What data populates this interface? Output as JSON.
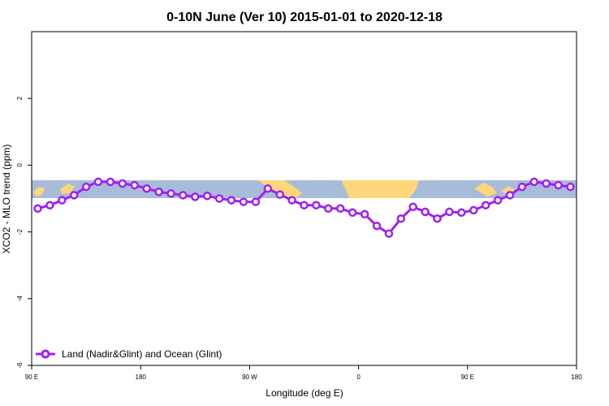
{
  "chart_data": {
    "type": "line",
    "title": "0-10N June (Ver 10)   2015-01-01 to 2020-12-18",
    "xlabel": "Longitude (deg E)",
    "ylabel": "XCO2 - MLO trend (ppm)",
    "x_ticks": [
      {
        "value": 90,
        "label": "90 E"
      },
      {
        "value": 180,
        "label": "180"
      },
      {
        "value": 270,
        "label": "90 W"
      },
      {
        "value": 360,
        "label": "0"
      },
      {
        "value": 450,
        "label": "90 E"
      },
      {
        "value": 540,
        "label": "180"
      }
    ],
    "y_ticks": [
      {
        "value": -6,
        "label": "-6"
      },
      {
        "value": -4,
        "label": "-4"
      },
      {
        "value": -2,
        "label": "-2"
      },
      {
        "value": 0,
        "label": "0"
      },
      {
        "value": 2,
        "label": "2"
      }
    ],
    "xlim": [
      90,
      540
    ],
    "ylim": [
      -6,
      4
    ],
    "grid": false,
    "legend_position": "bottom-left",
    "map_band": {
      "y_range": [
        -1.05,
        -0.5
      ],
      "ocean_color": "#a7bcd9",
      "land_color": "#ffd77a"
    },
    "series": [
      {
        "name": "Land (Nadir&Glint) and Ocean (Glint)",
        "color": "#a020f0",
        "x": [
          95,
          105,
          115,
          125,
          135,
          145,
          155,
          165,
          175,
          185,
          195,
          205,
          215,
          225,
          235,
          245,
          255,
          265,
          275,
          285,
          295,
          305,
          315,
          325,
          335,
          345,
          355,
          365,
          375,
          385,
          395,
          405,
          415,
          425,
          435,
          445,
          455,
          465,
          475,
          485,
          495,
          505,
          515,
          525,
          535
        ],
        "y": [
          -1.3,
          -1.2,
          -1.05,
          -0.9,
          -0.65,
          -0.5,
          -0.5,
          -0.55,
          -0.6,
          -0.7,
          -0.8,
          -0.85,
          -0.9,
          -0.95,
          -0.92,
          -1.0,
          -1.05,
          -1.1,
          -1.1,
          -0.7,
          -0.88,
          -1.05,
          -1.2,
          -1.2,
          -1.3,
          -1.3,
          -1.42,
          -1.47,
          -1.82,
          -2.05,
          -1.6,
          -1.25,
          -1.4,
          -1.6,
          -1.4,
          -1.42,
          -1.35,
          -1.2,
          -1.05,
          -0.9,
          -0.65,
          -0.5,
          -0.55,
          -0.6,
          -0.65
        ]
      }
    ]
  }
}
